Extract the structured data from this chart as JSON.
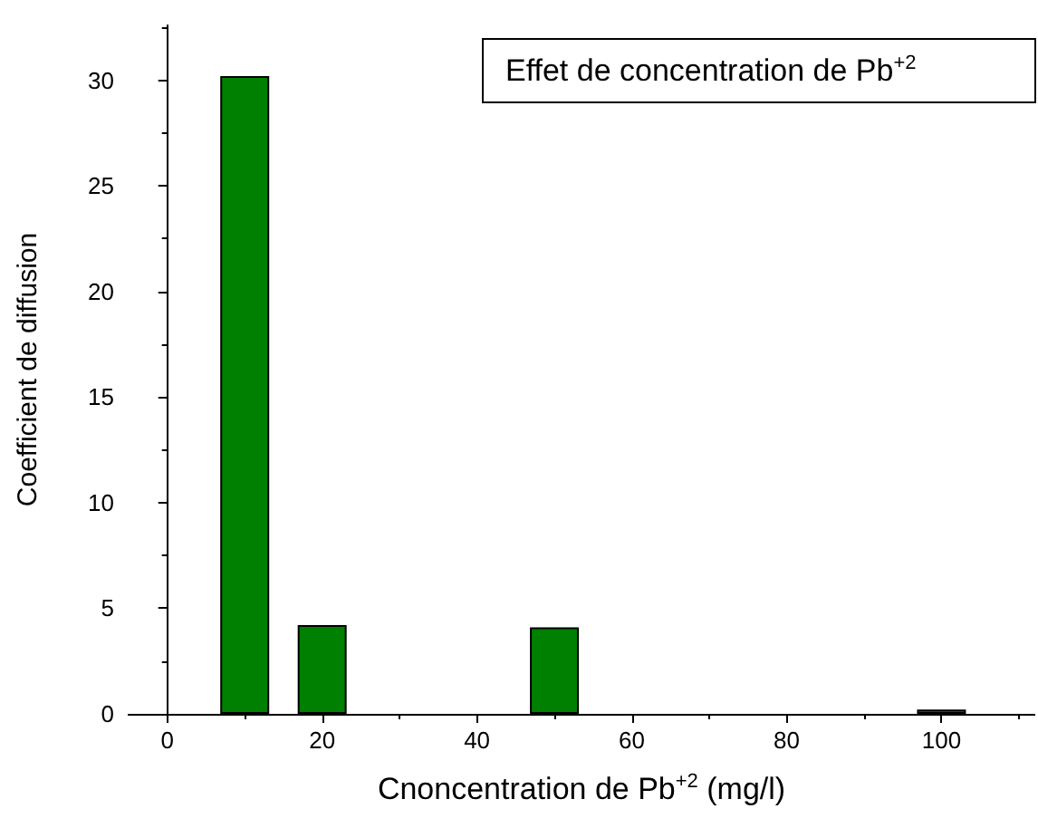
{
  "chart_data": {
    "type": "bar",
    "annotations": [
      "Effet de concentration de Pb$^{+2}$"
    ],
    "xlabel": "Cnoncentration de Pb$^{+2}$ (mg/l)",
    "ylabel": "Coefficient de diffusion",
    "x": [
      10,
      20,
      50,
      100
    ],
    "values": [
      30.2,
      4.2,
      4.1,
      0.2
    ],
    "color": "#008000",
    "xlim": [
      -5,
      112
    ],
    "xticks": [
      0,
      20,
      40,
      60,
      80,
      100
    ],
    "ylim": [
      0,
      32.6
    ],
    "yticks": [
      0,
      5,
      10,
      15,
      20,
      25,
      30
    ],
    "grid": false
  }
}
